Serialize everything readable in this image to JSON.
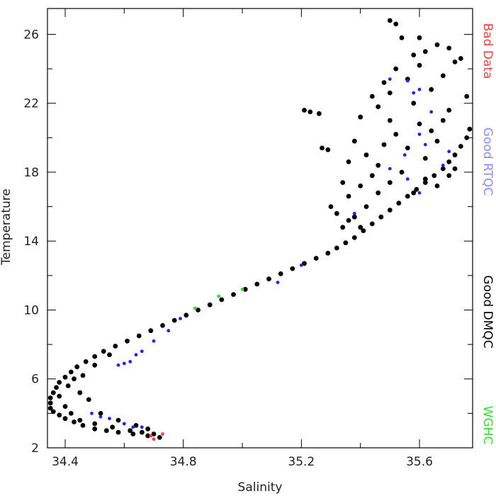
{
  "chart_data": {
    "type": "scatter",
    "title": "",
    "xlabel": "Salinity",
    "ylabel": "Temperature",
    "xlim": [
      34.34,
      35.78
    ],
    "ylim": [
      2,
      27.5
    ],
    "x_ticks": [
      34.4,
      34.8,
      35.2,
      35.6
    ],
    "x_tick_labels": [
      "34.4",
      "34.8",
      "35.2",
      "35.6"
    ],
    "y_ticks": [
      2,
      6,
      10,
      14,
      18,
      22,
      26
    ],
    "y_tick_labels": [
      "2",
      "6",
      "10",
      "14",
      "18",
      "22",
      "26"
    ],
    "legend": {
      "placement": "right-vertical",
      "entries": [
        {
          "label": "Bad Data",
          "color": "#ff3b3b"
        },
        {
          "label": "Good RTQC",
          "color": "#8a8aff"
        },
        {
          "label": "Good DMQC",
          "color": "#000000"
        },
        {
          "label": "WGHC",
          "color": "#33dd33"
        }
      ]
    },
    "series": [
      {
        "name": "Good DMQC",
        "color": "#000000",
        "points": [
          [
            34.72,
            2.6
          ],
          [
            34.68,
            2.7
          ],
          [
            34.63,
            2.8
          ],
          [
            34.58,
            2.9
          ],
          [
            34.54,
            3.0
          ],
          [
            34.5,
            3.1
          ],
          [
            34.46,
            3.3
          ],
          [
            34.43,
            3.5
          ],
          [
            34.4,
            3.7
          ],
          [
            34.38,
            3.9
          ],
          [
            34.36,
            4.1
          ],
          [
            34.35,
            4.3
          ],
          [
            34.35,
            4.6
          ],
          [
            34.35,
            4.9
          ],
          [
            34.36,
            5.2
          ],
          [
            34.37,
            5.5
          ],
          [
            34.38,
            5.8
          ],
          [
            34.4,
            6.1
          ],
          [
            34.42,
            6.4
          ],
          [
            34.44,
            6.7
          ],
          [
            34.47,
            7.0
          ],
          [
            34.5,
            7.3
          ],
          [
            34.53,
            7.6
          ],
          [
            34.57,
            7.9
          ],
          [
            34.61,
            8.2
          ],
          [
            34.65,
            8.5
          ],
          [
            34.69,
            8.8
          ],
          [
            34.73,
            9.1
          ],
          [
            34.77,
            9.4
          ],
          [
            34.81,
            9.7
          ],
          [
            34.85,
            10.0
          ],
          [
            34.89,
            10.3
          ],
          [
            34.93,
            10.6
          ],
          [
            34.97,
            10.9
          ],
          [
            35.01,
            11.2
          ],
          [
            35.05,
            11.5
          ],
          [
            35.09,
            11.8
          ],
          [
            35.13,
            12.1
          ],
          [
            35.17,
            12.4
          ],
          [
            35.21,
            12.7
          ],
          [
            35.25,
            13.0
          ],
          [
            35.29,
            13.3
          ],
          [
            35.32,
            13.6
          ],
          [
            35.35,
            13.9
          ],
          [
            35.38,
            14.2
          ],
          [
            35.41,
            14.6
          ],
          [
            35.44,
            15.0
          ],
          [
            35.47,
            15.4
          ],
          [
            35.5,
            15.8
          ],
          [
            35.53,
            16.2
          ],
          [
            35.56,
            16.6
          ],
          [
            35.59,
            17.0
          ],
          [
            35.62,
            17.4
          ],
          [
            35.65,
            17.8
          ],
          [
            35.68,
            18.2
          ],
          [
            35.7,
            18.6
          ],
          [
            35.72,
            19.0
          ],
          [
            35.74,
            19.5
          ],
          [
            35.76,
            20.0
          ],
          [
            35.77,
            20.5
          ],
          [
            35.4,
            14.8
          ],
          [
            35.38,
            15.4
          ],
          [
            35.42,
            16.0
          ],
          [
            35.36,
            16.6
          ],
          [
            35.4,
            17.2
          ],
          [
            35.44,
            17.8
          ],
          [
            35.46,
            18.4
          ],
          [
            35.42,
            19.0
          ],
          [
            35.48,
            19.6
          ],
          [
            35.52,
            20.2
          ],
          [
            35.5,
            21.0
          ],
          [
            35.46,
            21.8
          ],
          [
            35.5,
            22.6
          ],
          [
            35.56,
            23.4
          ],
          [
            35.6,
            24.2
          ],
          [
            35.62,
            25.0
          ],
          [
            35.66,
            25.4
          ],
          [
            35.54,
            25.8
          ],
          [
            35.5,
            26.8
          ],
          [
            35.52,
            26.6
          ],
          [
            35.58,
            22.0
          ],
          [
            35.64,
            22.8
          ],
          [
            35.68,
            23.6
          ],
          [
            35.72,
            24.4
          ],
          [
            35.7,
            21.6
          ],
          [
            35.6,
            20.8
          ],
          [
            35.56,
            19.4
          ],
          [
            35.62,
            18.8
          ],
          [
            35.66,
            19.8
          ],
          [
            35.54,
            18.0
          ],
          [
            35.36,
            18.6
          ],
          [
            35.34,
            17.4
          ],
          [
            35.38,
            19.8
          ],
          [
            35.4,
            21.2
          ],
          [
            35.44,
            22.4
          ],
          [
            35.48,
            23.2
          ],
          [
            35.52,
            24.0
          ],
          [
            35.58,
            24.8
          ],
          [
            35.64,
            20.4
          ],
          [
            35.68,
            21.0
          ],
          [
            35.21,
            21.6
          ],
          [
            35.23,
            21.5
          ],
          [
            35.26,
            21.4
          ],
          [
            35.27,
            19.4
          ],
          [
            35.29,
            19.3
          ],
          [
            35.74,
            24.6
          ],
          [
            35.76,
            22.4
          ],
          [
            35.6,
            25.8
          ],
          [
            35.7,
            25.2
          ],
          [
            35.3,
            16.0
          ],
          [
            35.32,
            15.6
          ],
          [
            35.34,
            14.8
          ],
          [
            35.36,
            15.2
          ],
          [
            35.46,
            16.8
          ],
          [
            35.5,
            17.4
          ],
          [
            35.58,
            16.8
          ],
          [
            35.62,
            17.6
          ],
          [
            35.66,
            17.2
          ],
          [
            35.7,
            17.8
          ],
          [
            35.72,
            18.2
          ],
          [
            34.45,
            3.6
          ],
          [
            34.5,
            3.4
          ],
          [
            34.56,
            3.2
          ],
          [
            34.62,
            3.0
          ],
          [
            34.66,
            2.9
          ],
          [
            34.7,
            2.8
          ],
          [
            34.4,
            4.4
          ],
          [
            34.42,
            4.0
          ],
          [
            34.38,
            5.0
          ],
          [
            34.41,
            5.6
          ],
          [
            34.45,
            5.2
          ],
          [
            34.48,
            4.8
          ],
          [
            34.52,
            4.0
          ],
          [
            34.58,
            3.6
          ],
          [
            34.64,
            3.3
          ],
          [
            34.68,
            3.1
          ],
          [
            34.43,
            6.0
          ],
          [
            34.46,
            6.2
          ],
          [
            34.5,
            6.8
          ],
          [
            34.55,
            7.4
          ]
        ]
      },
      {
        "name": "Good RTQC",
        "color": "#2222ff",
        "points": [
          [
            34.52,
            3.8
          ],
          [
            34.55,
            3.7
          ],
          [
            34.6,
            3.4
          ],
          [
            34.63,
            3.2
          ],
          [
            34.66,
            3.2
          ],
          [
            34.49,
            4.0
          ],
          [
            34.58,
            6.8
          ],
          [
            34.6,
            6.9
          ],
          [
            34.62,
            7.0
          ],
          [
            34.64,
            7.4
          ],
          [
            34.66,
            7.6
          ],
          [
            34.7,
            8.2
          ],
          [
            34.75,
            8.8
          ],
          [
            34.79,
            9.5
          ],
          [
            35.12,
            11.6
          ],
          [
            35.2,
            12.6
          ],
          [
            35.38,
            15.6
          ],
          [
            35.5,
            18.2
          ],
          [
            35.55,
            19.0
          ],
          [
            35.6,
            20.2
          ],
          [
            35.64,
            21.5
          ],
          [
            35.58,
            22.6
          ],
          [
            35.6,
            22.8
          ],
          [
            35.5,
            23.4
          ],
          [
            35.56,
            23.3
          ],
          [
            35.62,
            19.6
          ],
          [
            35.68,
            18.4
          ],
          [
            35.7,
            19.2
          ],
          [
            35.6,
            16.8
          ],
          [
            35.56,
            17.6
          ]
        ]
      },
      {
        "name": "WGHC",
        "color": "#33dd33",
        "points": [
          [
            34.84,
            10.1
          ],
          [
            34.92,
            10.8
          ],
          [
            35.0,
            11.2
          ]
        ]
      },
      {
        "name": "Bad Data",
        "color": "#ff3b3b",
        "points": [
          [
            34.7,
            2.5
          ],
          [
            34.73,
            2.8
          ],
          [
            34.69,
            2.7
          ]
        ]
      }
    ]
  }
}
